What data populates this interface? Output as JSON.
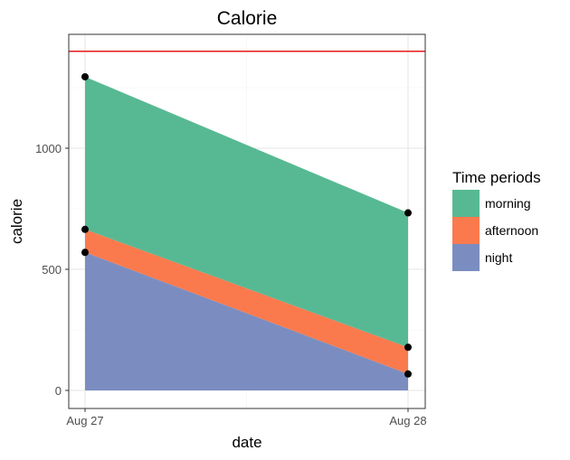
{
  "chart_data": {
    "type": "area",
    "title": "Calorie",
    "xlabel": "date",
    "ylabel": "calorie",
    "x_ticks": [
      "Aug 27",
      "Aug 28"
    ],
    "ylim": [
      -50,
      1410
    ],
    "y_ticks": [
      0,
      500,
      1000
    ],
    "grid": true,
    "reference_line": {
      "y": 1400,
      "color": "#e41a1c"
    },
    "legend": {
      "title": "Time periods",
      "position": "right"
    },
    "series": [
      {
        "name": "morning",
        "color": "#57b993",
        "values": [
          630,
          555
        ]
      },
      {
        "name": "afternoon",
        "color": "#fa7a4e",
        "values": [
          95,
          110
        ]
      },
      {
        "name": "night",
        "color": "#7b8dc0",
        "values": [
          570,
          68
        ]
      }
    ],
    "stack_order": [
      "night",
      "afternoon",
      "morning"
    ],
    "cumulative_points": [
      [
        570,
        665,
        1295
      ],
      [
        68,
        178,
        733
      ]
    ]
  }
}
